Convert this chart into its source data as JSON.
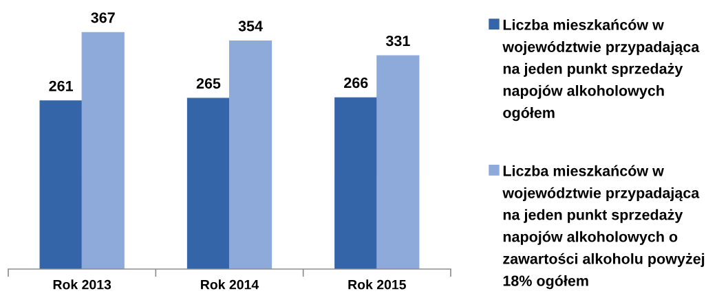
{
  "chart_data": {
    "type": "bar",
    "categories": [
      "Rok 2013",
      "Rok 2014",
      "Rok 2015"
    ],
    "series": [
      {
        "name": "Liczba mieszkańców w\nwojewództwie przypadająca\nna jeden punkt sprzedaży\nnapojów alkoholowych\nogółem",
        "color": "#3465a8",
        "values": [
          261,
          265,
          266
        ]
      },
      {
        "name": "Liczba mieszkańców w\nwojewództwie przypadająca\nna jeden punkt sprzedaży\nnapojów alkoholowych o\nzawartości alkoholu powyżej\n18% ogółem",
        "color": "#8eaadb",
        "values": [
          367,
          354,
          331
        ]
      }
    ],
    "data_labels": true,
    "legend": "right"
  }
}
